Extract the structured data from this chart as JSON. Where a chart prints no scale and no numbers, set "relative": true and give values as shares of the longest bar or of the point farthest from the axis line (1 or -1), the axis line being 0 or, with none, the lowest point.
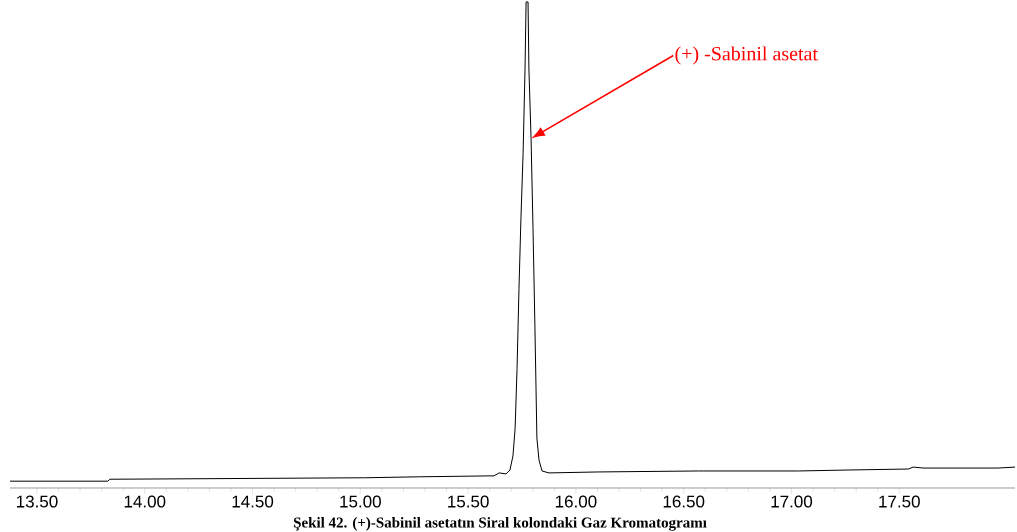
{
  "chart_data": {
    "type": "line",
    "relative": true,
    "color": "#000000",
    "x": [
      13.375,
      13.829,
      13.838,
      15.019,
      15.273,
      15.62,
      15.644,
      15.676,
      15.694,
      15.708,
      15.718,
      15.727,
      15.736,
      15.745,
      15.755,
      15.764,
      15.769,
      15.778,
      15.782,
      15.792,
      15.801,
      15.81,
      15.815,
      15.819,
      15.829,
      15.843,
      15.875,
      16.106,
      16.569,
      17.032,
      17.264,
      17.542,
      17.565,
      17.611,
      17.958,
      18.037
    ],
    "values": [
      0.014,
      0.014,
      0.018,
      0.021,
      0.023,
      0.025,
      0.031,
      0.029,
      0.037,
      0.066,
      0.123,
      0.246,
      0.411,
      0.554,
      0.688,
      0.862,
      1.0,
      1.0,
      0.862,
      0.719,
      0.534,
      0.329,
      0.205,
      0.103,
      0.057,
      0.035,
      0.031,
      0.033,
      0.035,
      0.035,
      0.037,
      0.039,
      0.043,
      0.041,
      0.041,
      0.043
    ],
    "xlim": [
      13.375,
      18.037
    ],
    "xticks": [
      {
        "value": 13.5,
        "label": "13.50"
      },
      {
        "value": 14.0,
        "label": "14.00"
      },
      {
        "value": 14.5,
        "label": "14.50"
      },
      {
        "value": 15.0,
        "label": "15.00"
      },
      {
        "value": 15.5,
        "label": "15.50"
      },
      {
        "value": 16.0,
        "label": "16.00"
      },
      {
        "value": 16.5,
        "label": "16.50"
      },
      {
        "value": 17.0,
        "label": "17.00"
      },
      {
        "value": 17.5,
        "label": "17.50"
      }
    ],
    "annotations": [
      "(+) -Sabinil asetat",
      "Şekil 42. (+)-Sabinil asetatın Siral kolondaki Gaz Kromatogramı"
    ],
    "grid": false,
    "marker": "none",
    "line_style": "solid"
  }
}
